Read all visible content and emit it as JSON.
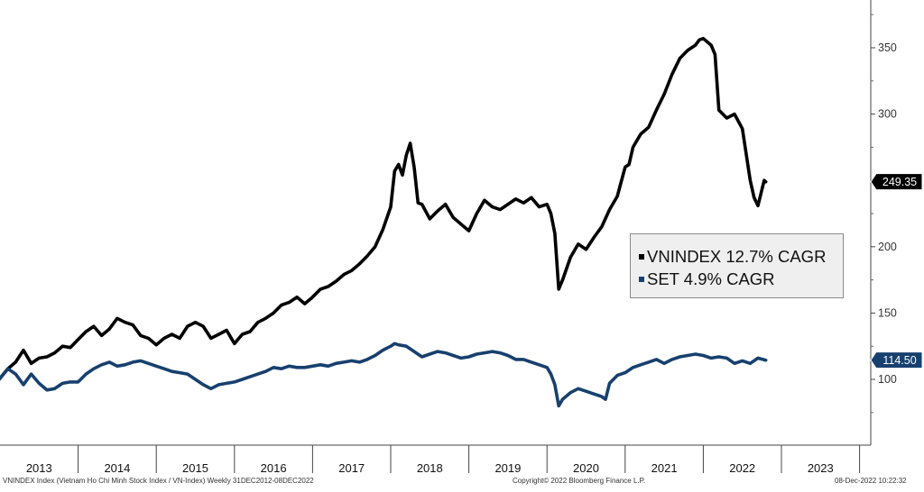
{
  "chart_data": {
    "type": "line",
    "x_labels": [
      "2013",
      "2014",
      "2015",
      "2016",
      "2017",
      "2018",
      "2019",
      "2020",
      "2021",
      "2022",
      "2023"
    ],
    "y_ticks": [
      100,
      150,
      200,
      250,
      300,
      350
    ],
    "ylim": [
      50,
      400
    ],
    "series": [
      {
        "name": "VNINDEX 12.7% CAGR",
        "color": "#000000",
        "last_value_label": "249.35",
        "points": [
          [
            2012.99,
            100
          ],
          [
            2013.1,
            108
          ],
          [
            2013.2,
            113
          ],
          [
            2013.3,
            122
          ],
          [
            2013.4,
            112
          ],
          [
            2013.5,
            116
          ],
          [
            2013.6,
            117
          ],
          [
            2013.7,
            120
          ],
          [
            2013.8,
            125
          ],
          [
            2013.9,
            124
          ],
          [
            2014.0,
            130
          ],
          [
            2014.1,
            136
          ],
          [
            2014.2,
            140
          ],
          [
            2014.3,
            133
          ],
          [
            2014.4,
            138
          ],
          [
            2014.5,
            146
          ],
          [
            2014.6,
            143
          ],
          [
            2014.7,
            141
          ],
          [
            2014.8,
            133
          ],
          [
            2014.9,
            131
          ],
          [
            2015.0,
            126
          ],
          [
            2015.1,
            131
          ],
          [
            2015.2,
            134
          ],
          [
            2015.3,
            131
          ],
          [
            2015.4,
            140
          ],
          [
            2015.5,
            143
          ],
          [
            2015.6,
            140
          ],
          [
            2015.7,
            131
          ],
          [
            2015.8,
            134
          ],
          [
            2015.9,
            137
          ],
          [
            2016.0,
            127
          ],
          [
            2016.1,
            134
          ],
          [
            2016.2,
            136
          ],
          [
            2016.3,
            143
          ],
          [
            2016.4,
            146
          ],
          [
            2016.5,
            150
          ],
          [
            2016.6,
            156
          ],
          [
            2016.7,
            158
          ],
          [
            2016.8,
            162
          ],
          [
            2016.9,
            157
          ],
          [
            2017.0,
            162
          ],
          [
            2017.1,
            168
          ],
          [
            2017.2,
            170
          ],
          [
            2017.3,
            174
          ],
          [
            2017.4,
            179
          ],
          [
            2017.5,
            182
          ],
          [
            2017.6,
            187
          ],
          [
            2017.7,
            193
          ],
          [
            2017.8,
            200
          ],
          [
            2017.9,
            213
          ],
          [
            2018.0,
            230
          ],
          [
            2018.05,
            257
          ],
          [
            2018.1,
            262
          ],
          [
            2018.15,
            254
          ],
          [
            2018.2,
            269
          ],
          [
            2018.25,
            278
          ],
          [
            2018.3,
            260
          ],
          [
            2018.35,
            233
          ],
          [
            2018.4,
            232
          ],
          [
            2018.5,
            221
          ],
          [
            2018.6,
            227
          ],
          [
            2018.7,
            232
          ],
          [
            2018.8,
            222
          ],
          [
            2018.9,
            217
          ],
          [
            2019.0,
            212
          ],
          [
            2019.1,
            225
          ],
          [
            2019.2,
            235
          ],
          [
            2019.3,
            230
          ],
          [
            2019.4,
            228
          ],
          [
            2019.5,
            232
          ],
          [
            2019.6,
            236
          ],
          [
            2019.7,
            233
          ],
          [
            2019.8,
            237
          ],
          [
            2019.9,
            230
          ],
          [
            2020.0,
            232
          ],
          [
            2020.05,
            225
          ],
          [
            2020.1,
            210
          ],
          [
            2020.15,
            168
          ],
          [
            2020.2,
            175
          ],
          [
            2020.3,
            192
          ],
          [
            2020.4,
            202
          ],
          [
            2020.5,
            198
          ],
          [
            2020.6,
            207
          ],
          [
            2020.7,
            215
          ],
          [
            2020.8,
            228
          ],
          [
            2020.9,
            238
          ],
          [
            2021.0,
            260
          ],
          [
            2021.05,
            262
          ],
          [
            2021.1,
            275
          ],
          [
            2021.2,
            285
          ],
          [
            2021.3,
            290
          ],
          [
            2021.4,
            303
          ],
          [
            2021.5,
            315
          ],
          [
            2021.6,
            330
          ],
          [
            2021.7,
            342
          ],
          [
            2021.8,
            348
          ],
          [
            2021.9,
            352
          ],
          [
            2021.95,
            356
          ],
          [
            2022.0,
            357
          ],
          [
            2022.1,
            352
          ],
          [
            2022.15,
            345
          ],
          [
            2022.2,
            303
          ],
          [
            2022.3,
            297
          ],
          [
            2022.4,
            300
          ],
          [
            2022.5,
            289
          ],
          [
            2022.6,
            250
          ],
          [
            2022.65,
            237
          ],
          [
            2022.7,
            231
          ],
          [
            2022.78,
            250
          ],
          [
            2022.8,
            249
          ]
        ]
      },
      {
        "name": "SET 4.9% CAGR",
        "color": "#17406e",
        "last_value_label": "114.50",
        "points": [
          [
            2012.99,
            100
          ],
          [
            2013.1,
            108
          ],
          [
            2013.2,
            104
          ],
          [
            2013.3,
            96
          ],
          [
            2013.4,
            104
          ],
          [
            2013.5,
            97
          ],
          [
            2013.6,
            92
          ],
          [
            2013.7,
            93
          ],
          [
            2013.8,
            97
          ],
          [
            2013.9,
            98
          ],
          [
            2014.0,
            98
          ],
          [
            2014.1,
            104
          ],
          [
            2014.2,
            108
          ],
          [
            2014.3,
            111
          ],
          [
            2014.4,
            113
          ],
          [
            2014.5,
            110
          ],
          [
            2014.6,
            111
          ],
          [
            2014.7,
            113
          ],
          [
            2014.8,
            114
          ],
          [
            2014.9,
            112
          ],
          [
            2015.0,
            110
          ],
          [
            2015.1,
            108
          ],
          [
            2015.2,
            106
          ],
          [
            2015.3,
            105
          ],
          [
            2015.4,
            104
          ],
          [
            2015.5,
            100
          ],
          [
            2015.6,
            96
          ],
          [
            2015.7,
            93
          ],
          [
            2015.8,
            96
          ],
          [
            2015.9,
            97
          ],
          [
            2016.0,
            98
          ],
          [
            2016.1,
            100
          ],
          [
            2016.2,
            102
          ],
          [
            2016.3,
            104
          ],
          [
            2016.4,
            106
          ],
          [
            2016.5,
            109
          ],
          [
            2016.6,
            108
          ],
          [
            2016.7,
            110
          ],
          [
            2016.8,
            109
          ],
          [
            2016.9,
            109
          ],
          [
            2017.0,
            110
          ],
          [
            2017.1,
            111
          ],
          [
            2017.2,
            110
          ],
          [
            2017.3,
            112
          ],
          [
            2017.4,
            113
          ],
          [
            2017.5,
            114
          ],
          [
            2017.6,
            113
          ],
          [
            2017.7,
            115
          ],
          [
            2017.8,
            118
          ],
          [
            2017.9,
            122
          ],
          [
            2018.0,
            125
          ],
          [
            2018.05,
            127
          ],
          [
            2018.1,
            126
          ],
          [
            2018.2,
            125
          ],
          [
            2018.3,
            121
          ],
          [
            2018.4,
            117
          ],
          [
            2018.5,
            119
          ],
          [
            2018.6,
            121
          ],
          [
            2018.7,
            120
          ],
          [
            2018.8,
            118
          ],
          [
            2018.9,
            116
          ],
          [
            2019.0,
            117
          ],
          [
            2019.1,
            119
          ],
          [
            2019.2,
            120
          ],
          [
            2019.3,
            121
          ],
          [
            2019.4,
            120
          ],
          [
            2019.5,
            118
          ],
          [
            2019.6,
            115
          ],
          [
            2019.7,
            115
          ],
          [
            2019.8,
            113
          ],
          [
            2019.9,
            111
          ],
          [
            2020.0,
            109
          ],
          [
            2020.05,
            104
          ],
          [
            2020.1,
            96
          ],
          [
            2020.15,
            80
          ],
          [
            2020.2,
            85
          ],
          [
            2020.3,
            90
          ],
          [
            2020.4,
            93
          ],
          [
            2020.5,
            91
          ],
          [
            2020.6,
            89
          ],
          [
            2020.7,
            87
          ],
          [
            2020.75,
            85
          ],
          [
            2020.8,
            97
          ],
          [
            2020.9,
            103
          ],
          [
            2021.0,
            105
          ],
          [
            2021.1,
            109
          ],
          [
            2021.2,
            111
          ],
          [
            2021.3,
            113
          ],
          [
            2021.4,
            115
          ],
          [
            2021.5,
            112
          ],
          [
            2021.6,
            115
          ],
          [
            2021.7,
            117
          ],
          [
            2021.8,
            118
          ],
          [
            2021.9,
            119
          ],
          [
            2022.0,
            118
          ],
          [
            2022.1,
            116
          ],
          [
            2022.2,
            117
          ],
          [
            2022.3,
            116
          ],
          [
            2022.4,
            112
          ],
          [
            2022.5,
            114
          ],
          [
            2022.6,
            112
          ],
          [
            2022.7,
            116
          ],
          [
            2022.8,
            114.5
          ]
        ]
      }
    ],
    "legend_location": "center-right",
    "grid": false
  },
  "footer": {
    "left": "VNINDEX Index (Vietnam Ho Chi Minh Stock Index / VN-Index)  Weekly 31DEC2012-08DEC2022",
    "center": "Copyright© 2022 Bloomberg Finance L.P.",
    "right": "08-Dec-2022  10:22:32"
  }
}
